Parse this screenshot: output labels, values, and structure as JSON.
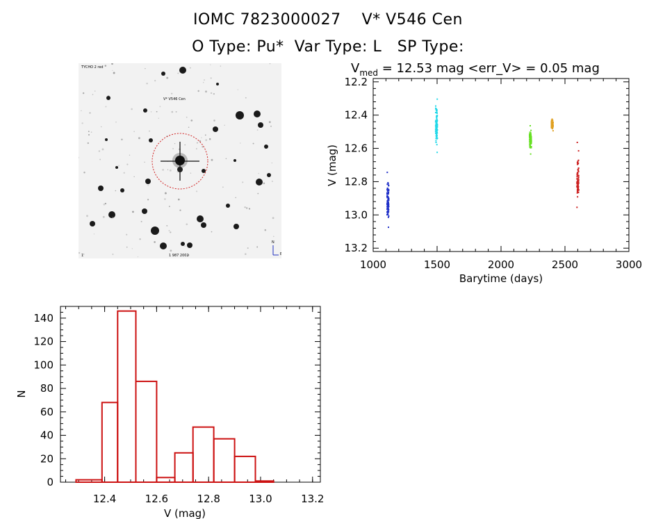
{
  "header": {
    "title_line1": "IOMC 7823000027    V* V546 Cen",
    "title_line2": "O Type: Pu*  Var Type: L   SP Type:"
  },
  "sky_image": {
    "label_top_left": "TYCHO 2 red",
    "label_target": "V* V546 Cen",
    "label_bottom_left": "1'",
    "label_bottom_center": "1 987 2002",
    "label_bottom_right": "E",
    "label_compass_n": "N",
    "circle_color": "#d02020"
  },
  "chart_data": [
    {
      "type": "scatter",
      "title_main": "V",
      "title_sub": "med",
      "title_rest": " = 12.53 mag <err_V> = 0.05 mag",
      "xlabel": "Barytime (days)",
      "ylabel": "V (mag)",
      "xlim": [
        1000,
        3000
      ],
      "ylim": [
        13.22,
        12.18
      ],
      "xticks": [
        1000,
        1500,
        2000,
        2500,
        3000
      ],
      "xtick_labels": [
        "1000",
        "1500",
        "2000",
        "2500",
        "3000"
      ],
      "yticks": [
        12.2,
        12.4,
        12.6,
        12.8,
        13.0,
        13.2
      ],
      "ytick_labels": [
        "12.2",
        "12.4",
        "12.6",
        "12.8",
        "13.0",
        "13.2"
      ],
      "series": [
        {
          "name": "season1",
          "color": "#1f2fc8",
          "x_center": 1110,
          "y_min": 12.74,
          "y_max": 13.07,
          "y_mid": 12.91
        },
        {
          "name": "season2",
          "color": "#22d8e8",
          "x_center": 1490,
          "y_min": 12.3,
          "y_max": 12.62,
          "y_mid": 12.47
        },
        {
          "name": "season3",
          "color": "#66e022",
          "x_center": 2225,
          "y_min": 12.46,
          "y_max": 12.63,
          "y_mid": 12.54
        },
        {
          "name": "season4",
          "color": "#e0a020",
          "x_center": 2395,
          "y_min": 12.42,
          "y_max": 12.49,
          "y_mid": 12.45
        },
        {
          "name": "season5",
          "color": "#cc2020",
          "x_center": 2595,
          "y_min": 12.56,
          "y_max": 12.95,
          "y_mid": 12.8
        }
      ]
    },
    {
      "type": "bar",
      "subtype": "histogram",
      "xlabel": "V (mag)",
      "ylabel": "N",
      "xlim": [
        12.23,
        13.23
      ],
      "ylim": [
        0,
        150
      ],
      "xticks": [
        12.4,
        12.6,
        12.8,
        13.0,
        13.2
      ],
      "xtick_labels": [
        "12.4",
        "12.6",
        "12.8",
        "13.0",
        "13.2"
      ],
      "yticks": [
        0,
        20,
        40,
        60,
        80,
        100,
        120,
        140
      ],
      "ytick_labels": [
        "0",
        "20",
        "40",
        "60",
        "80",
        "100",
        "120",
        "140"
      ],
      "bin_edges": [
        12.29,
        12.39,
        12.45,
        12.52,
        12.6,
        12.67,
        12.74,
        12.82,
        12.9,
        12.98,
        13.05
      ],
      "values": [
        2,
        68,
        146,
        86,
        4,
        25,
        47,
        37,
        22,
        1
      ],
      "bar_color": "#cc1111"
    }
  ]
}
